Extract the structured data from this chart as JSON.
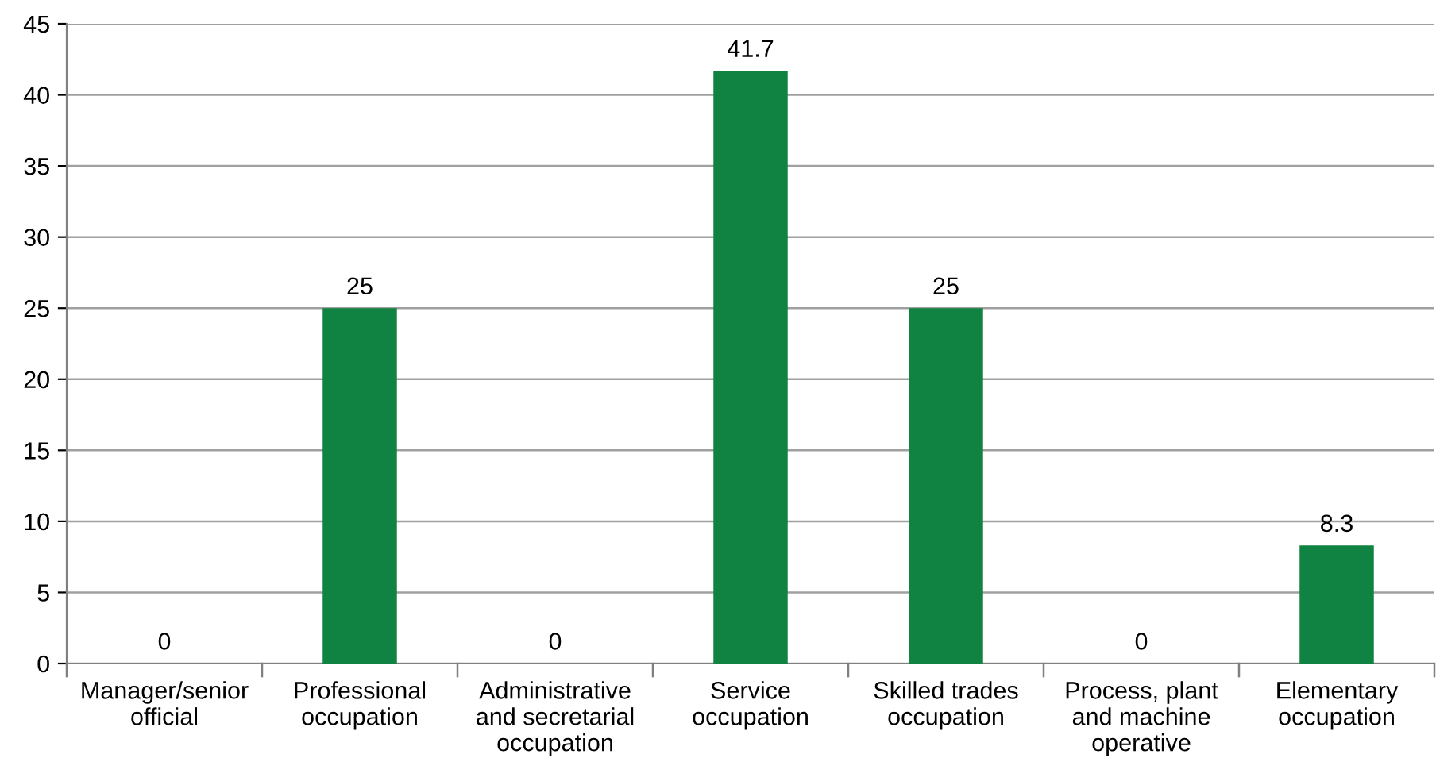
{
  "chart_data": {
    "type": "bar",
    "categories": [
      "Manager/senior\nofficial",
      "Professional\noccupation",
      "Administrative\nand secretarial\noccupation",
      "Service\noccupation",
      "Skilled trades\noccupation",
      "Process, plant\nand machine\noperative",
      "Elementary\noccupation"
    ],
    "values": [
      0,
      25,
      0,
      41.7,
      25,
      0,
      8.3
    ],
    "color": "#108241",
    "ylim": [
      0,
      45
    ],
    "yticks": [
      0,
      5,
      10,
      15,
      20,
      25,
      30,
      35,
      40,
      45
    ],
    "grid": "y",
    "data_labels": true,
    "legend": false
  }
}
